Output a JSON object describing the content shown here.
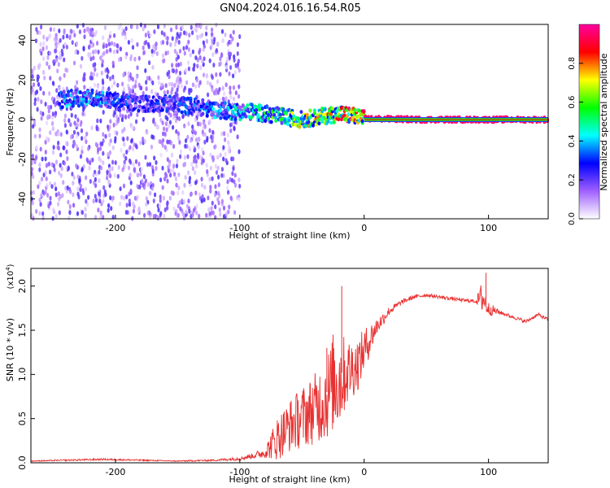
{
  "title": "GN04.2024.016.16.54.R05",
  "chart_data": [
    {
      "type": "heatmap",
      "title": "GN04.2024.016.16.54.R05",
      "xlabel": "Height of straight line (km)",
      "ylabel": "Frequency (Hz)",
      "xlim": [
        -268,
        148
      ],
      "ylim": [
        -50,
        48
      ],
      "x_ticks": [
        -200,
        -100,
        0,
        100
      ],
      "x_tick_labels": [
        "-200",
        "-100",
        "0",
        "100"
      ],
      "y_ticks": [
        -40,
        -20,
        0,
        20,
        40
      ],
      "y_tick_labels": [
        "-40",
        "-20",
        "0",
        "20",
        "40"
      ],
      "colorbar": {
        "label": "Normalized spectral amplitude",
        "range": [
          0,
          1
        ],
        "ticks": [
          0.0,
          0.2,
          0.4,
          0.6,
          0.8
        ],
        "tick_labels": [
          "0.0",
          "0.2",
          "0.4",
          "0.6",
          "0.8"
        ],
        "colors": [
          "#ffffff",
          "#a060ff",
          "#0000ff",
          "#00ffff",
          "#00ff00",
          "#ffff00",
          "#ff0000",
          "#ff00a0"
        ]
      },
      "ridge": {
        "x": [
          -245,
          -230,
          -215,
          -200,
          -180,
          -160,
          -140,
          -120,
          -105,
          -90,
          -80,
          -70,
          -60,
          -50,
          -40,
          -30,
          -20,
          -10,
          0,
          50,
          100,
          148
        ],
        "frequency": [
          10,
          11,
          11,
          9,
          8,
          8,
          7,
          5,
          4,
          4,
          3,
          2,
          1,
          0,
          1,
          2,
          3,
          2,
          0.5,
          0,
          0,
          0
        ],
        "amplitude": [
          0.4,
          0.45,
          0.4,
          0.35,
          0.3,
          0.3,
          0.35,
          0.4,
          0.45,
          0.5,
          0.55,
          0.6,
          0.65,
          0.7,
          0.75,
          0.8,
          0.85,
          0.9,
          0.95,
          0.95,
          0.95,
          0.95
        ]
      },
      "grid": false
    },
    {
      "type": "line",
      "xlabel": "Height of straight line (km)",
      "ylabel": "SNR (10 * v/v)",
      "y_exponent_label": "(x10",
      "y_exponent_power": "4",
      "y_exponent_close": ")",
      "xlim": [
        -268,
        148
      ],
      "ylim": [
        0,
        2.2
      ],
      "x_ticks": [
        -200,
        -100,
        0,
        100
      ],
      "x_tick_labels": [
        "-200",
        "-100",
        "0",
        "100"
      ],
      "y_ticks": [
        0.0,
        0.5,
        1.0,
        1.5,
        2.0
      ],
      "y_tick_labels": [
        "0.0",
        "0.5",
        "1.0",
        "1.5",
        "2.0"
      ],
      "color": "#e83030",
      "x": [
        -268,
        -240,
        -210,
        -180,
        -150,
        -120,
        -100,
        -90,
        -80,
        -70,
        -60,
        -50,
        -40,
        -30,
        -25,
        -20,
        -15,
        -10,
        -5,
        0,
        10,
        20,
        30,
        40,
        50,
        60,
        70,
        80,
        90,
        95,
        100,
        110,
        120,
        130,
        140,
        148
      ],
      "y": [
        0.02,
        0.03,
        0.04,
        0.03,
        0.02,
        0.03,
        0.05,
        0.08,
        0.12,
        0.3,
        0.45,
        0.55,
        0.65,
        0.8,
        0.95,
        1.0,
        1.05,
        1.1,
        1.15,
        1.3,
        1.55,
        1.72,
        1.82,
        1.88,
        1.9,
        1.88,
        1.86,
        1.84,
        1.83,
        1.9,
        1.75,
        1.7,
        1.65,
        1.6,
        1.68,
        1.62
      ],
      "noise_amplitude": [
        0.005,
        0.008,
        0.01,
        0.008,
        0.006,
        0.01,
        0.02,
        0.03,
        0.06,
        0.25,
        0.3,
        0.35,
        0.4,
        0.5,
        0.55,
        0.6,
        0.4,
        0.35,
        0.3,
        0.25,
        0.1,
        0.05,
        0.03,
        0.025,
        0.02,
        0.02,
        0.02,
        0.02,
        0.02,
        0.2,
        0.08,
        0.02,
        0.02,
        0.02,
        0.02,
        0.02
      ],
      "spikes": [
        {
          "x": -18,
          "y": 2.0
        },
        {
          "x": -25,
          "y": 1.45
        },
        {
          "x": -30,
          "y": 1.3
        },
        {
          "x": 98,
          "y": 2.15
        },
        {
          "x": 94,
          "y": 1.97
        }
      ],
      "grid": false
    }
  ]
}
